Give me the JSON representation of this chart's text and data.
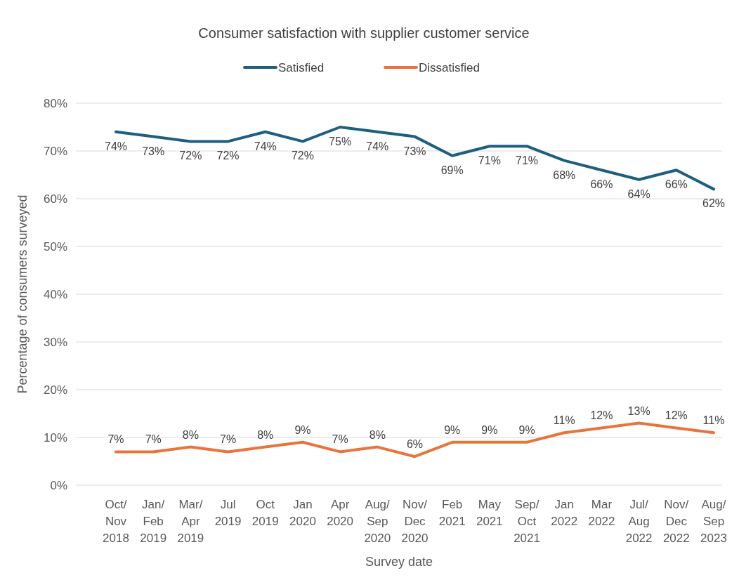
{
  "chart_data": {
    "type": "line",
    "title": "Consumer satisfaction with supplier customer service",
    "xlabel": "Survey date",
    "ylabel": "Percentage of consumers surveyed",
    "categories": [
      "Oct/\nNov\n2018",
      "Jan/\nFeb\n2019",
      "Mar/\nApr\n2019",
      "Jul\n2019",
      "Oct\n2019",
      "Jan\n2020",
      "Apr\n2020",
      "Aug/\nSep\n2020",
      "Nov/\nDec\n2020",
      "Feb\n2021",
      "May\n2021",
      "Sep/\nOct\n2021",
      "Jan\n2022",
      "Mar\n2022",
      "Jul/\nAug\n2022",
      "Nov/\nDec\n2022",
      "Aug/\nSep\n2023"
    ],
    "series": [
      {
        "name": "Satisfied",
        "color": "#1d5f7f",
        "values": [
          74,
          73,
          72,
          72,
          74,
          72,
          75,
          74,
          73,
          69,
          71,
          71,
          68,
          66,
          64,
          66,
          62
        ],
        "value_labels": [
          "74%",
          "73%",
          "72%",
          "72%",
          "74%",
          "72%",
          "75%",
          "74%",
          "73%",
          "69%",
          "71%",
          "71%",
          "68%",
          "66%",
          "64%",
          "66%",
          "62%"
        ]
      },
      {
        "name": "Dissatisfied",
        "color": "#e8743b",
        "values": [
          7,
          7,
          8,
          7,
          8,
          9,
          7,
          8,
          6,
          9,
          9,
          9,
          11,
          12,
          13,
          12,
          11
        ],
        "value_labels": [
          "7%",
          "7%",
          "8%",
          "7%",
          "8%",
          "9%",
          "7%",
          "8%",
          "6%",
          "9%",
          "9%",
          "9%",
          "11%",
          "12%",
          "13%",
          "12%",
          "11%"
        ]
      }
    ],
    "ylim": [
      0,
      80
    ],
    "yticks": [
      {
        "value": 0,
        "label": "0%"
      },
      {
        "value": 10,
        "label": "10%"
      },
      {
        "value": 20,
        "label": "20%"
      },
      {
        "value": 30,
        "label": "30%"
      },
      {
        "value": 40,
        "label": "40%"
      },
      {
        "value": 50,
        "label": "50%"
      },
      {
        "value": 60,
        "label": "60%"
      },
      {
        "value": 70,
        "label": "70%"
      },
      {
        "value": 80,
        "label": "80%"
      }
    ],
    "grid": "y",
    "legend": "top",
    "marker": "none",
    "line_style": "solid"
  }
}
